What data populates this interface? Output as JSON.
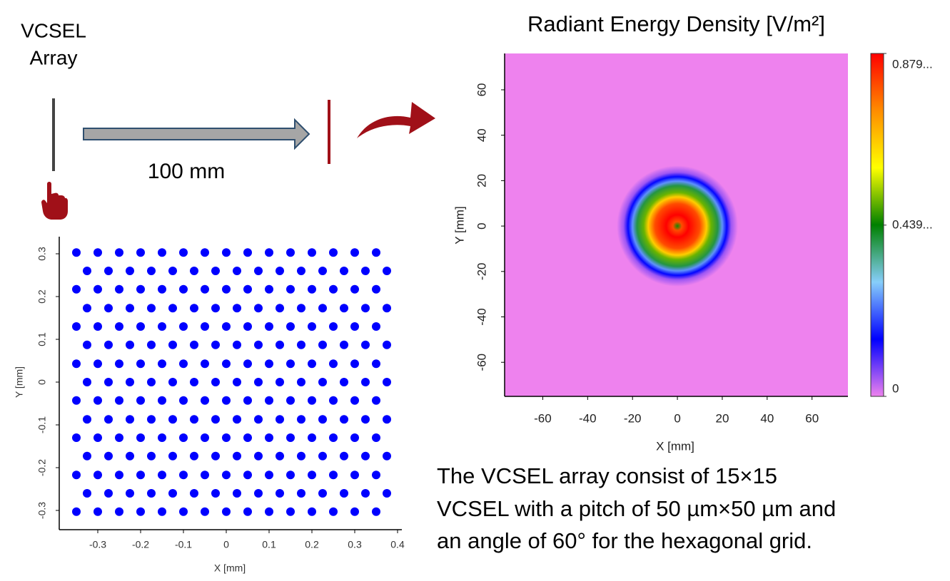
{
  "labels": {
    "source": [
      "VCSEL",
      "Array"
    ],
    "distance": "100 mm",
    "description": [
      "The VCSEL array consist of 15×15",
      "VCSEL with a pitch of 50 µm×50 µm and",
      "an angle of 60° for the hexagonal grid."
    ]
  },
  "chart_data": [
    {
      "type": "scatter",
      "x_label": "X [mm]",
      "y_label": "Y [mm]",
      "xlim": [
        -0.39,
        0.41
      ],
      "ylim": [
        -0.345,
        0.34
      ],
      "xticks": [
        -0.3,
        -0.2,
        -0.1,
        0,
        0.1,
        0.2,
        0.3,
        0.4
      ],
      "yticks": [
        -0.3,
        -0.2,
        -0.1,
        0,
        0.1,
        0.2,
        0.3
      ],
      "series": [
        {
          "color": "#0000ff",
          "x": [
            -0.35,
            -0.3,
            -0.25,
            -0.2,
            -0.15,
            -0.1,
            -0.05,
            0,
            0.05,
            0.1,
            0.15,
            0.2,
            0.25,
            0.3,
            0.35
          ],
          "values": [
            0.303,
            0.303,
            0.303,
            0.303,
            0.303,
            0.303,
            0.303,
            0.303,
            0.303,
            0.303,
            0.303,
            0.303,
            0.303,
            0.303,
            0.303
          ]
        },
        {
          "color": "#0000ff",
          "x": [
            -0.325,
            -0.275,
            -0.225,
            -0.175,
            -0.125,
            -0.075,
            -0.025,
            0.025,
            0.075,
            0.125,
            0.175,
            0.225,
            0.275,
            0.325,
            0.375
          ],
          "values": [
            0.26,
            0.26,
            0.26,
            0.26,
            0.26,
            0.26,
            0.26,
            0.26,
            0.26,
            0.26,
            0.26,
            0.26,
            0.26,
            0.26,
            0.26
          ]
        },
        {
          "color": "#0000ff",
          "x": [
            -0.35,
            -0.3,
            -0.25,
            -0.2,
            -0.15,
            -0.1,
            -0.05,
            0,
            0.05,
            0.1,
            0.15,
            0.2,
            0.25,
            0.3,
            0.35
          ],
          "values": [
            0.217,
            0.217,
            0.217,
            0.217,
            0.217,
            0.217,
            0.217,
            0.217,
            0.217,
            0.217,
            0.217,
            0.217,
            0.217,
            0.217,
            0.217
          ]
        },
        {
          "color": "#0000ff",
          "x": [
            -0.325,
            -0.275,
            -0.225,
            -0.175,
            -0.125,
            -0.075,
            -0.025,
            0.025,
            0.075,
            0.125,
            0.175,
            0.225,
            0.275,
            0.325,
            0.375
          ],
          "values": [
            0.173,
            0.173,
            0.173,
            0.173,
            0.173,
            0.173,
            0.173,
            0.173,
            0.173,
            0.173,
            0.173,
            0.173,
            0.173,
            0.173,
            0.173
          ]
        },
        {
          "color": "#0000ff",
          "x": [
            -0.35,
            -0.3,
            -0.25,
            -0.2,
            -0.15,
            -0.1,
            -0.05,
            0,
            0.05,
            0.1,
            0.15,
            0.2,
            0.25,
            0.3,
            0.35
          ],
          "values": [
            0.13,
            0.13,
            0.13,
            0.13,
            0.13,
            0.13,
            0.13,
            0.13,
            0.13,
            0.13,
            0.13,
            0.13,
            0.13,
            0.13,
            0.13
          ]
        },
        {
          "color": "#0000ff",
          "x": [
            -0.325,
            -0.275,
            -0.225,
            -0.175,
            -0.125,
            -0.075,
            -0.025,
            0.025,
            0.075,
            0.125,
            0.175,
            0.225,
            0.275,
            0.325,
            0.375
          ],
          "values": [
            0.087,
            0.087,
            0.087,
            0.087,
            0.087,
            0.087,
            0.087,
            0.087,
            0.087,
            0.087,
            0.087,
            0.087,
            0.087,
            0.087,
            0.087
          ]
        },
        {
          "color": "#0000ff",
          "x": [
            -0.35,
            -0.3,
            -0.25,
            -0.2,
            -0.15,
            -0.1,
            -0.05,
            0,
            0.05,
            0.1,
            0.15,
            0.2,
            0.25,
            0.3,
            0.35
          ],
          "values": [
            0.043,
            0.043,
            0.043,
            0.043,
            0.043,
            0.043,
            0.043,
            0.043,
            0.043,
            0.043,
            0.043,
            0.043,
            0.043,
            0.043,
            0.043
          ]
        },
        {
          "color": "#0000ff",
          "x": [
            -0.325,
            -0.275,
            -0.225,
            -0.175,
            -0.125,
            -0.075,
            -0.025,
            0.025,
            0.075,
            0.125,
            0.175,
            0.225,
            0.275,
            0.325,
            0.375
          ],
          "values": [
            0,
            0,
            0,
            0,
            0,
            0,
            0,
            0,
            0,
            0,
            0,
            0,
            0,
            0,
            0
          ]
        },
        {
          "color": "#0000ff",
          "x": [
            -0.35,
            -0.3,
            -0.25,
            -0.2,
            -0.15,
            -0.1,
            -0.05,
            0,
            0.05,
            0.1,
            0.15,
            0.2,
            0.25,
            0.3,
            0.35
          ],
          "values": [
            -0.043,
            -0.043,
            -0.043,
            -0.043,
            -0.043,
            -0.043,
            -0.043,
            -0.043,
            -0.043,
            -0.043,
            -0.043,
            -0.043,
            -0.043,
            -0.043,
            -0.043
          ]
        },
        {
          "color": "#0000ff",
          "x": [
            -0.325,
            -0.275,
            -0.225,
            -0.175,
            -0.125,
            -0.075,
            -0.025,
            0.025,
            0.075,
            0.125,
            0.175,
            0.225,
            0.275,
            0.325,
            0.375
          ],
          "values": [
            -0.087,
            -0.087,
            -0.087,
            -0.087,
            -0.087,
            -0.087,
            -0.087,
            -0.087,
            -0.087,
            -0.087,
            -0.087,
            -0.087,
            -0.087,
            -0.087,
            -0.087
          ]
        },
        {
          "color": "#0000ff",
          "x": [
            -0.35,
            -0.3,
            -0.25,
            -0.2,
            -0.15,
            -0.1,
            -0.05,
            0,
            0.05,
            0.1,
            0.15,
            0.2,
            0.25,
            0.3,
            0.35
          ],
          "values": [
            -0.13,
            -0.13,
            -0.13,
            -0.13,
            -0.13,
            -0.13,
            -0.13,
            -0.13,
            -0.13,
            -0.13,
            -0.13,
            -0.13,
            -0.13,
            -0.13,
            -0.13
          ]
        },
        {
          "color": "#0000ff",
          "x": [
            -0.325,
            -0.275,
            -0.225,
            -0.175,
            -0.125,
            -0.075,
            -0.025,
            0.025,
            0.075,
            0.125,
            0.175,
            0.225,
            0.275,
            0.325,
            0.375
          ],
          "values": [
            -0.173,
            -0.173,
            -0.173,
            -0.173,
            -0.173,
            -0.173,
            -0.173,
            -0.173,
            -0.173,
            -0.173,
            -0.173,
            -0.173,
            -0.173,
            -0.173,
            -0.173
          ]
        },
        {
          "color": "#0000ff",
          "x": [
            -0.35,
            -0.3,
            -0.25,
            -0.2,
            -0.15,
            -0.1,
            -0.05,
            0,
            0.05,
            0.1,
            0.15,
            0.2,
            0.25,
            0.3,
            0.35
          ],
          "values": [
            -0.217,
            -0.217,
            -0.217,
            -0.217,
            -0.217,
            -0.217,
            -0.217,
            -0.217,
            -0.217,
            -0.217,
            -0.217,
            -0.217,
            -0.217,
            -0.217,
            -0.217
          ]
        },
        {
          "color": "#0000ff",
          "x": [
            -0.325,
            -0.275,
            -0.225,
            -0.175,
            -0.125,
            -0.075,
            -0.025,
            0.025,
            0.075,
            0.125,
            0.175,
            0.225,
            0.275,
            0.325,
            0.375
          ],
          "values": [
            -0.26,
            -0.26,
            -0.26,
            -0.26,
            -0.26,
            -0.26,
            -0.26,
            -0.26,
            -0.26,
            -0.26,
            -0.26,
            -0.26,
            -0.26,
            -0.26,
            -0.26
          ]
        },
        {
          "color": "#0000ff",
          "x": [
            -0.35,
            -0.3,
            -0.25,
            -0.2,
            -0.15,
            -0.1,
            -0.05,
            0,
            0.05,
            0.1,
            0.15,
            0.2,
            0.25,
            0.3,
            0.35
          ],
          "values": [
            -0.303,
            -0.303,
            -0.303,
            -0.303,
            -0.303,
            -0.303,
            -0.303,
            -0.303,
            -0.303,
            -0.303,
            -0.303,
            -0.303,
            -0.303,
            -0.303,
            -0.303
          ]
        }
      ]
    },
    {
      "type": "heatmap",
      "title": "Radiant Energy Density [V/m²]",
      "x_label": "X [mm]",
      "y_label": "Y [mm]",
      "xlim": [
        -77,
        76
      ],
      "ylim": [
        -75,
        76
      ],
      "xticks": [
        -60,
        -40,
        -20,
        0,
        20,
        40,
        60
      ],
      "yticks": [
        -60,
        -40,
        -20,
        0,
        20,
        40,
        60
      ],
      "r": [
        0,
        2,
        5,
        10,
        13,
        15,
        18,
        20,
        22,
        24,
        27
      ],
      "values": [
        0.45,
        0.8,
        0.879,
        0.8,
        0.65,
        0.5,
        0.4,
        0.25,
        0.15,
        0.05,
        0
      ],
      "clim": [
        0,
        0.879
      ],
      "cticks": [
        0,
        {
          "value": 0.439,
          "label": "0.439..."
        },
        {
          "value": 0.879,
          "label": "0.879..."
        }
      ],
      "colormap": [
        "#ee82ee",
        "#0000ff",
        "#87cefa",
        "#008000",
        "#ffff00",
        "#ff8c00",
        "#ff0000"
      ]
    }
  ]
}
